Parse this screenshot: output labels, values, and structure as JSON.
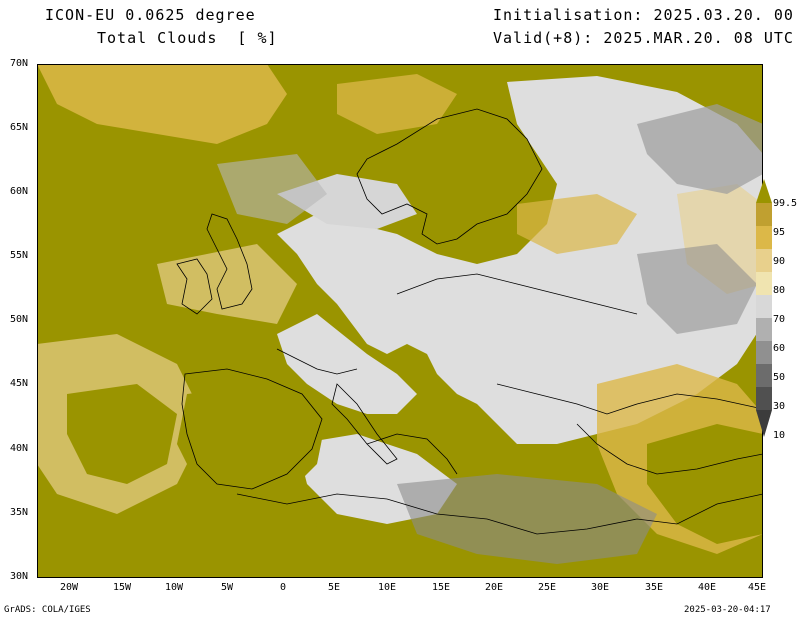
{
  "header": {
    "model": "ICON-EU 0.0625 degree",
    "variable": "Total Clouds  [ %]",
    "init": "Initialisation: 2025.03.20. 00 UTC",
    "valid": "Valid(+8): 2025.MAR.20. 08 UTC"
  },
  "axes": {
    "lat_labels": [
      "70N",
      "65N",
      "60N",
      "55N",
      "50N",
      "45N",
      "40N",
      "35N",
      "30N"
    ],
    "lon_labels": [
      "20W",
      "15W",
      "10W",
      "5W",
      "0",
      "5E",
      "10E",
      "15E",
      "20E",
      "25E",
      "30E",
      "35E",
      "40E",
      "45E"
    ]
  },
  "legend": {
    "labels": [
      "99.5",
      "95",
      "90",
      "80",
      "70",
      "60",
      "50",
      "30",
      "10"
    ],
    "colors": [
      "#c0a030",
      "#dcb848",
      "#e8d08c",
      "#f0e4b0",
      "#d8d8d8",
      "#b0b0b0",
      "#909090",
      "#6c6c6c",
      "#505050"
    ],
    "overcast_color": "#9a9400"
  },
  "footer": {
    "left": "GrADS: COLA/IGES",
    "right": "2025-03-20-04:17"
  }
}
